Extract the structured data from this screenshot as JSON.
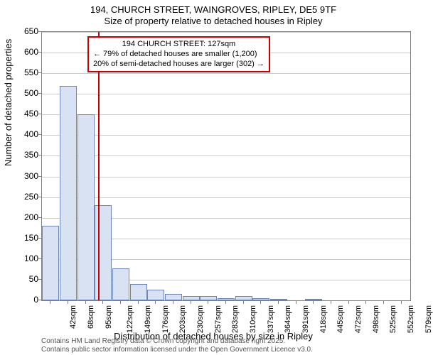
{
  "header": {
    "address_line": "194, CHURCH STREET, WAINGROVES, RIPLEY, DE5 9TF",
    "subtitle": "Size of property relative to detached houses in Ripley"
  },
  "axes": {
    "xlabel": "Distribution of detached houses by size in Ripley",
    "ylabel": "Number of detached properties"
  },
  "chart": {
    "type": "histogram",
    "ylim": [
      0,
      650
    ],
    "ytick_step": 50,
    "ytick_labels": [
      "0",
      "50",
      "100",
      "150",
      "200",
      "250",
      "300",
      "350",
      "400",
      "450",
      "500",
      "550",
      "600",
      "650"
    ],
    "xtick_labels": [
      "42sqm",
      "68sqm",
      "95sqm",
      "122sqm",
      "149sqm",
      "176sqm",
      "203sqm",
      "230sqm",
      "257sqm",
      "283sqm",
      "310sqm",
      "337sqm",
      "364sqm",
      "391sqm",
      "418sqm",
      "445sqm",
      "472sqm",
      "498sqm",
      "525sqm",
      "552sqm",
      "579sqm"
    ],
    "bar_values": [
      180,
      520,
      450,
      230,
      78,
      40,
      25,
      15,
      10,
      10,
      5,
      10,
      5,
      3,
      0,
      3,
      0,
      0,
      0,
      0,
      0
    ],
    "bar_fill": "#d9e2f3",
    "bar_stroke": "#6d86b3",
    "grid_color": "#cccccc",
    "background_color": "#ffffff",
    "marker": {
      "x_index": 3.2,
      "color": "#cc0000"
    }
  },
  "annotation": {
    "title": "194 CHURCH STREET: 127sqm",
    "line1": "← 79% of detached houses are smaller (1,200)",
    "line2": "20% of semi-detached houses are larger (302) →",
    "border_color": "#cc0000"
  },
  "attribution": {
    "line1": "Contains HM Land Registry data © Crown copyright and database right 2025.",
    "line2": "Contains public sector information licensed under the Open Government Licence v3.0."
  }
}
